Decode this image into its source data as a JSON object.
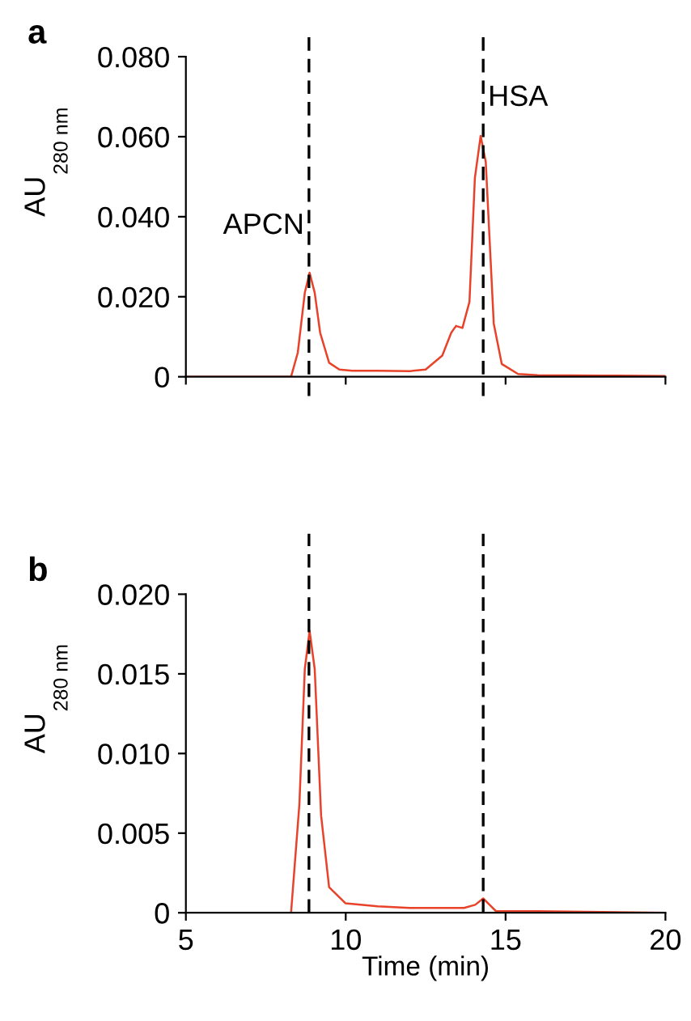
{
  "chart_data": [
    {
      "type": "line",
      "title": "a",
      "ylabel": "AU$_{280 nm}$",
      "xlim": [
        5,
        20
      ],
      "xticks": [
        5,
        10,
        15,
        20
      ],
      "ylim": [
        0,
        0.08
      ],
      "yticks": [
        {
          "value": 0,
          "label": "0"
        },
        {
          "value": 0.02,
          "label": "0.020"
        },
        {
          "value": 0.04,
          "label": "0.040"
        },
        {
          "value": 0.06,
          "label": "0.060"
        },
        {
          "value": 0.08,
          "label": "0.080"
        }
      ],
      "tick_labels": "y",
      "series": [
        {
          "color": "#e8432a",
          "x": [
            5,
            8.1,
            8.29,
            8.5,
            8.72,
            8.87,
            9.03,
            9.2,
            9.48,
            9.8,
            10.2,
            11,
            12,
            12.5,
            13.02,
            13.3,
            13.45,
            13.65,
            13.87,
            14.04,
            14.22,
            14.38,
            14.63,
            14.88,
            15.39,
            16,
            18,
            20
          ],
          "values": [
            0,
            0,
            0,
            0.006,
            0.021,
            0.026,
            0.021,
            0.011,
            0.0035,
            0.0018,
            0.0015,
            0.0015,
            0.0014,
            0.0018,
            0.0053,
            0.011,
            0.0127,
            0.0122,
            0.0187,
            0.0497,
            0.0602,
            0.0537,
            0.0133,
            0.0032,
            0.0007,
            0.0004,
            0.0003,
            0.0002
          ]
        }
      ],
      "ref_lines": [
        {
          "axis": "x",
          "value": 8.85,
          "label": "APCN",
          "line_style": "dashed",
          "color": "#000000"
        },
        {
          "axis": "x",
          "value": 14.3,
          "label": "HSA",
          "line_style": "dashed",
          "color": "#000000"
        }
      ]
    },
    {
      "type": "line",
      "title": "b",
      "xlabel": "Time (min)",
      "ylabel": "AU$_{280 nm}$",
      "xlim": [
        5,
        20
      ],
      "xticks": [
        5,
        10,
        15,
        20
      ],
      "ylim": [
        0,
        0.02
      ],
      "yticks": [
        {
          "value": 0,
          "label": "0"
        },
        {
          "value": 0.005,
          "label": "0.005"
        },
        {
          "value": 0.01,
          "label": "0.010"
        },
        {
          "value": 0.015,
          "label": "0.015"
        },
        {
          "value": 0.02,
          "label": "0.020"
        }
      ],
      "series": [
        {
          "color": "#e8432a",
          "x": [
            5,
            8.1,
            8.29,
            8.55,
            8.72,
            8.87,
            9.03,
            9.23,
            9.48,
            9.99,
            11,
            12,
            13.7,
            14.05,
            14.3,
            14.5,
            14.7,
            16,
            20
          ],
          "values": [
            0,
            0,
            0,
            0.0068,
            0.0153,
            0.0177,
            0.0153,
            0.0061,
            0.0016,
            0.0006,
            0.0004,
            0.0003,
            0.0003,
            0.0005,
            0.0009,
            0.0005,
            0.0001,
            0.0001,
            0
          ]
        }
      ],
      "ref_lines": [
        {
          "axis": "x",
          "value": 8.85,
          "line_style": "dashed",
          "color": "#000000"
        },
        {
          "axis": "x",
          "value": 14.3,
          "line_style": "dashed",
          "color": "#000000"
        }
      ]
    }
  ]
}
